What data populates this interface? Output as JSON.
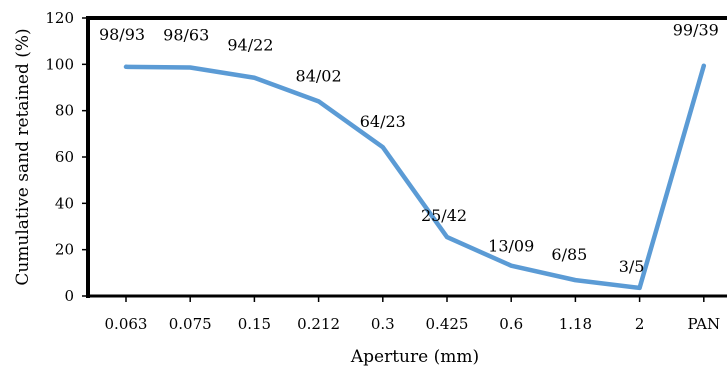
{
  "chart_data": {
    "type": "line",
    "title": "",
    "xlabel": "Aperture (mm)",
    "ylabel": "Cumulative sand retained (%)",
    "categories": [
      "0.063",
      "0.075",
      "0.15",
      "0.212",
      "0.3",
      "0.425",
      "0.6",
      "1.18",
      "2",
      "PAN"
    ],
    "ylim": [
      0,
      120
    ],
    "yticks": [
      "0",
      "20",
      "40",
      "60",
      "80",
      "100",
      "120"
    ],
    "grid": false,
    "legend": "none",
    "series": [
      {
        "values": [
          98.93,
          98.63,
          94.22,
          84.02,
          64.23,
          25.42,
          13.09,
          6.85,
          3.5,
          99.39
        ],
        "labels": [
          "98/93",
          "98/63",
          "94/22",
          "84/02",
          "64/23",
          "25/42",
          "13/09",
          "6/85",
          "3/5",
          "99/39"
        ],
        "color": "#5b9bd5"
      }
    ],
    "axis_color": "#000000"
  }
}
